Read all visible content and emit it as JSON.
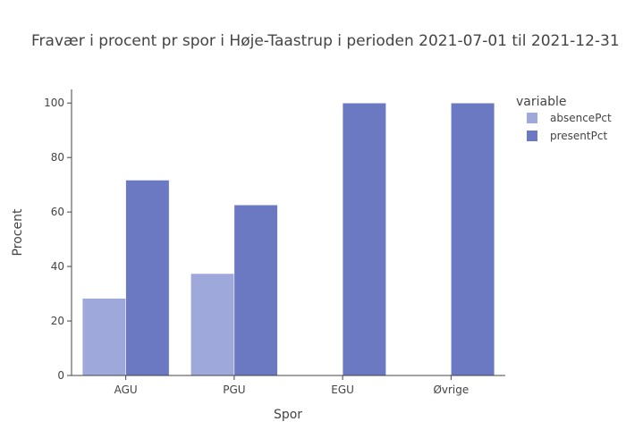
{
  "chart_data": {
    "type": "bar",
    "title": "Fravær i procent pr spor i Høje-Taastrup i perioden 2021-07-01 til 2021-12-31",
    "xlabel": "Spor",
    "ylabel": "Procent",
    "categories": [
      "AGU",
      "PGU",
      "EGU",
      "Øvrige"
    ],
    "ylim": [
      0,
      105
    ],
    "yticks": [
      0,
      20,
      40,
      60,
      80,
      100
    ],
    "grid": false,
    "legend_title": "variable",
    "legend_position": "top-right",
    "series": [
      {
        "name": "absencePct",
        "color": "#9fa8da",
        "values": [
          28.3,
          37.4,
          null,
          null
        ]
      },
      {
        "name": "presentPct",
        "color": "#6b79c2",
        "values": [
          71.7,
          62.6,
          100,
          100
        ]
      }
    ]
  }
}
